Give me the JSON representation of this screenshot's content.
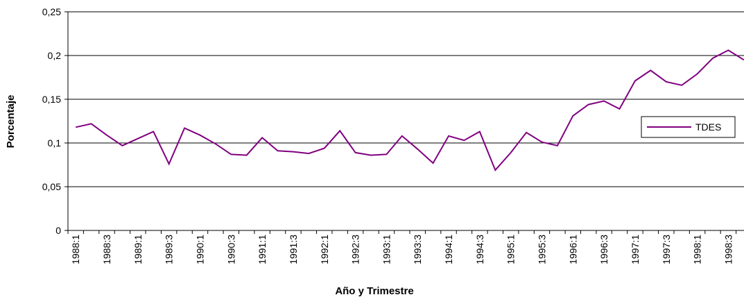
{
  "chart_data": {
    "type": "line",
    "x_label": "Año y Trimestre",
    "y_label": "Porcentaje",
    "categories": [
      "1988:1",
      null,
      "1988:3",
      null,
      "1989:1",
      null,
      "1989:3",
      null,
      "1990:1",
      null,
      "1990:3",
      null,
      "1991:1",
      null,
      "1991:3",
      null,
      "1992:1",
      null,
      "1992:3",
      null,
      "1993:1",
      null,
      "1993:3",
      null,
      "1994:1",
      null,
      "1994:3",
      null,
      "1995:1",
      null,
      "1995:3",
      null,
      "1996:1",
      null,
      "1996:3",
      null,
      "1997:1",
      null,
      "1997:3",
      null,
      "1998:1",
      null,
      "1998:3",
      null
    ],
    "series": [
      {
        "name": "TDES",
        "color": "#800080",
        "values": [
          0.118,
          0.122,
          0.109,
          0.097,
          0.105,
          0.113,
          0.076,
          0.117,
          0.109,
          0.099,
          0.087,
          0.086,
          0.106,
          0.091,
          0.09,
          0.088,
          0.094,
          0.114,
          0.089,
          0.086,
          0.087,
          0.108,
          0.093,
          0.077,
          0.108,
          0.103,
          0.113,
          0.069,
          0.089,
          0.112,
          0.101,
          0.097,
          0.131,
          0.144,
          0.148,
          0.139,
          0.171,
          0.183,
          0.17,
          0.166,
          0.179,
          0.197,
          0.206,
          0.195
        ]
      }
    ],
    "ylim": [
      0,
      0.25
    ],
    "yticks": [
      {
        "value": 0,
        "label": "0"
      },
      {
        "value": 0.05,
        "label": "0,05"
      },
      {
        "value": 0.1,
        "label": "0,1"
      },
      {
        "value": 0.15,
        "label": "0,15"
      },
      {
        "value": 0.2,
        "label": "0,2"
      },
      {
        "value": 0.25,
        "label": "0,25"
      }
    ],
    "grid": true,
    "legend": "right"
  }
}
